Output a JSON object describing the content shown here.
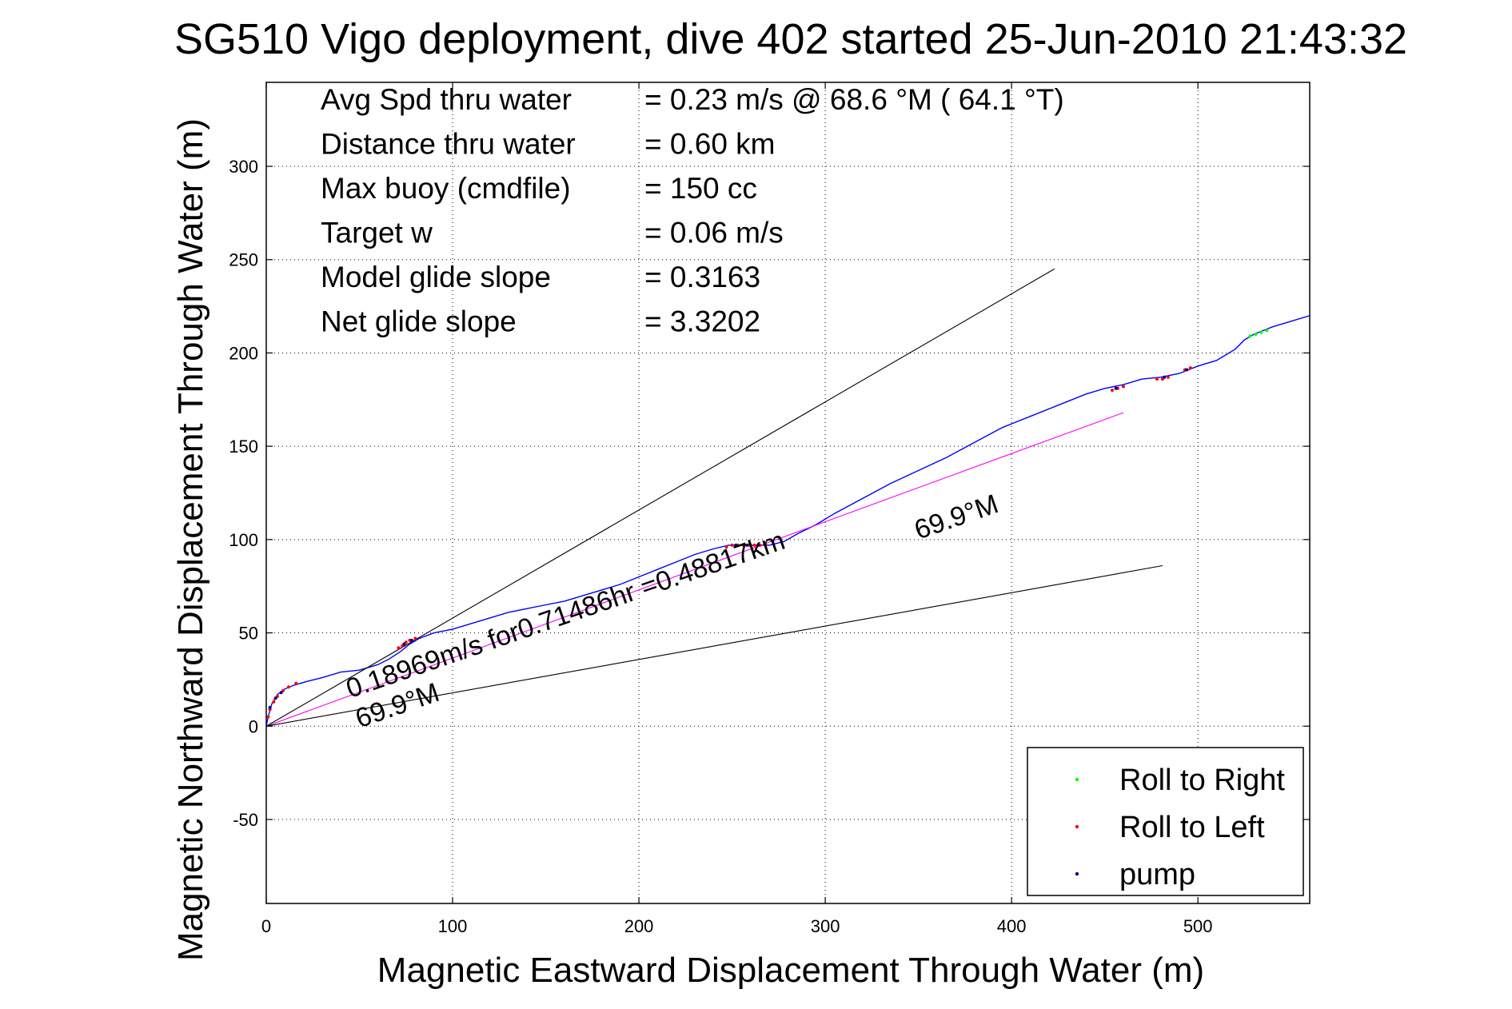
{
  "chart_data": {
    "type": "line",
    "title": "SG510 Vigo deployment, dive 402 started 25-Jun-2010 21:43:32",
    "xlabel": "Magnetic Eastward Displacement Through Water (m)",
    "ylabel": "Magnetic Northward Displacement Through Water (m)",
    "xlim": [
      0,
      560
    ],
    "ylim": [
      -95,
      345
    ],
    "xticks": [
      0,
      100,
      200,
      300,
      400,
      500
    ],
    "yticks": [
      -50,
      0,
      50,
      100,
      150,
      200,
      250,
      300
    ],
    "grid": true,
    "legend_position": "bottom-right",
    "info_lines": [
      {
        "label": "Avg Spd thru water",
        "value": "=  0.23 m/s @  68.6 °M ( 64.1 °T)"
      },
      {
        "label": "Distance thru water",
        "value": "=  0.60 km"
      },
      {
        "label": "Max buoy (cmdfile)",
        "value": "= 150 cc"
      },
      {
        "label": "Target w",
        "value": "= 0.06 m/s"
      },
      {
        "label": "Model glide slope",
        "value": "= 0.3163"
      },
      {
        "label": "Net glide slope",
        "value": "= 3.3202"
      }
    ],
    "annotations": [
      {
        "text": "0.18969m/s for0.71486hr =0.48817km",
        "at": [
          45,
          15
        ],
        "angle_deg": 19
      },
      {
        "text": "69.9°M",
        "at": [
          50,
          -1
        ],
        "angle_deg": 19
      },
      {
        "text": "69.9°M",
        "at": [
          350,
          100
        ],
        "angle_deg": 19
      }
    ],
    "series": [
      {
        "name": "track",
        "role": "track",
        "color": "#0000ff",
        "x": [
          0,
          1,
          3,
          6,
          10,
          15,
          22,
          30,
          40,
          50,
          60,
          66,
          72,
          77,
          82,
          90,
          100,
          110,
          120,
          130,
          140,
          150,
          160,
          170,
          180,
          190,
          200,
          210,
          220,
          230,
          240,
          248,
          255,
          262,
          270,
          278,
          285,
          295,
          305,
          320,
          335,
          350,
          365,
          380,
          395,
          410,
          425,
          440,
          450,
          460,
          470,
          480,
          490,
          500,
          510,
          520,
          525,
          530,
          540,
          550,
          560
        ],
        "y": [
          0,
          5,
          12,
          17,
          20,
          22,
          24,
          26,
          29,
          30,
          33,
          36,
          40,
          44,
          47,
          50,
          52,
          55,
          58,
          61,
          63,
          65,
          67,
          70,
          73,
          76,
          80,
          84,
          88,
          92,
          95,
          97,
          97,
          97,
          97,
          99,
          103,
          108,
          114,
          122,
          130,
          137,
          144,
          152,
          160,
          166,
          172,
          178,
          181,
          183,
          186,
          187,
          189,
          193,
          196,
          202,
          207,
          210,
          214,
          217,
          220
        ]
      },
      {
        "name": "heading 69.9°M",
        "role": "heading",
        "color": "#ff00ff",
        "x": [
          0,
          460
        ],
        "y": [
          0,
          168
        ]
      },
      {
        "name": "upper bound",
        "role": "bound",
        "color": "#000000",
        "x": [
          0,
          423
        ],
        "y": [
          0,
          245
        ]
      },
      {
        "name": "lower bound",
        "role": "bound",
        "color": "#000000",
        "x": [
          0,
          481
        ],
        "y": [
          0,
          86
        ]
      },
      {
        "name": "Roll to Right",
        "role": "marker",
        "color": "#00ff00",
        "x": [
          528,
          531,
          534,
          537
        ],
        "y": [
          209,
          210,
          211,
          212
        ]
      },
      {
        "name": "Roll to Left",
        "role": "marker",
        "color": "#ff0000",
        "x": [
          1,
          2,
          4,
          6,
          9,
          12,
          16,
          71,
          73,
          75,
          77,
          80,
          247,
          250,
          253,
          256,
          259,
          262,
          265,
          268,
          454,
          457,
          460,
          478,
          481,
          484,
          493,
          496
        ],
        "y": [
          5,
          9,
          13,
          16,
          19,
          21,
          23,
          42,
          43,
          45,
          46,
          47,
          96,
          97,
          97,
          97,
          97,
          97,
          97,
          97,
          180,
          181,
          182,
          186,
          186,
          187,
          191,
          192
        ]
      },
      {
        "name": "pump",
        "role": "marker",
        "color": "#000080",
        "x": [
          2,
          5,
          8,
          74,
          78,
          252,
          258,
          264,
          456,
          482,
          494
        ],
        "y": [
          10,
          15,
          18,
          44,
          46,
          97,
          97,
          97,
          181,
          187,
          191
        ]
      }
    ],
    "legend": [
      {
        "label": "Roll to Right",
        "color": "#00ff00"
      },
      {
        "label": "Roll to Left",
        "color": "#ff0000"
      },
      {
        "label": "pump",
        "color": "#000080"
      }
    ]
  }
}
